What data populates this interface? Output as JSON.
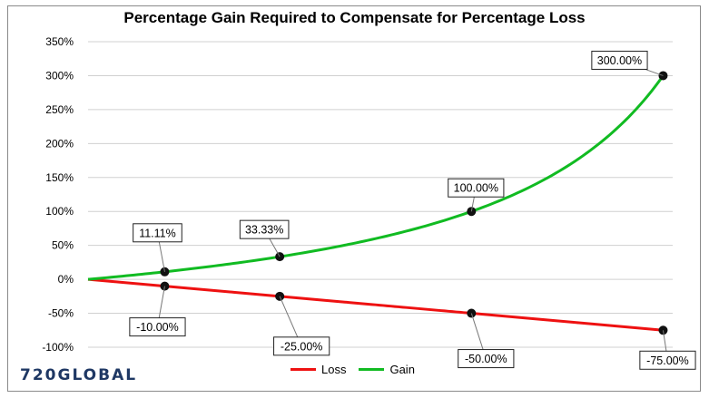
{
  "chart_data": {
    "type": "line",
    "title": "Percentage Gain Required to Compensate for Percentage Loss",
    "xlabel": "",
    "ylabel": "",
    "ylim": [
      -100,
      350
    ],
    "yticks": [
      -100,
      -50,
      0,
      50,
      100,
      150,
      200,
      250,
      300,
      350
    ],
    "ytick_labels": [
      "-100%",
      "-50%",
      "0%",
      "50%",
      "100%",
      "150%",
      "200%",
      "250%",
      "300%",
      "350%"
    ],
    "x_loss_percent": [
      0,
      75
    ],
    "grid": "horizontal",
    "legend_position": "bottom",
    "series": [
      {
        "name": "Loss",
        "color": "#ee1111",
        "formula": "y = -x",
        "highlighted_points": [
          {
            "x": 10,
            "y": -10,
            "label": "-10.00%"
          },
          {
            "x": 25,
            "y": -25,
            "label": "-25.00%"
          },
          {
            "x": 50,
            "y": -50,
            "label": "-50.00%"
          },
          {
            "x": 75,
            "y": -75,
            "label": "-75.00%"
          }
        ]
      },
      {
        "name": "Gain",
        "color": "#11bb22",
        "formula": "y = 100*x/(100-x)",
        "highlighted_points": [
          {
            "x": 10,
            "y": 11.11,
            "label": "11.11%"
          },
          {
            "x": 25,
            "y": 33.33,
            "label": "33.33%"
          },
          {
            "x": 50,
            "y": 100,
            "label": "100.00%"
          },
          {
            "x": 75,
            "y": 300,
            "label": "300.00%"
          }
        ]
      }
    ]
  },
  "branding": {
    "logo_text": "720GLOBAL"
  }
}
